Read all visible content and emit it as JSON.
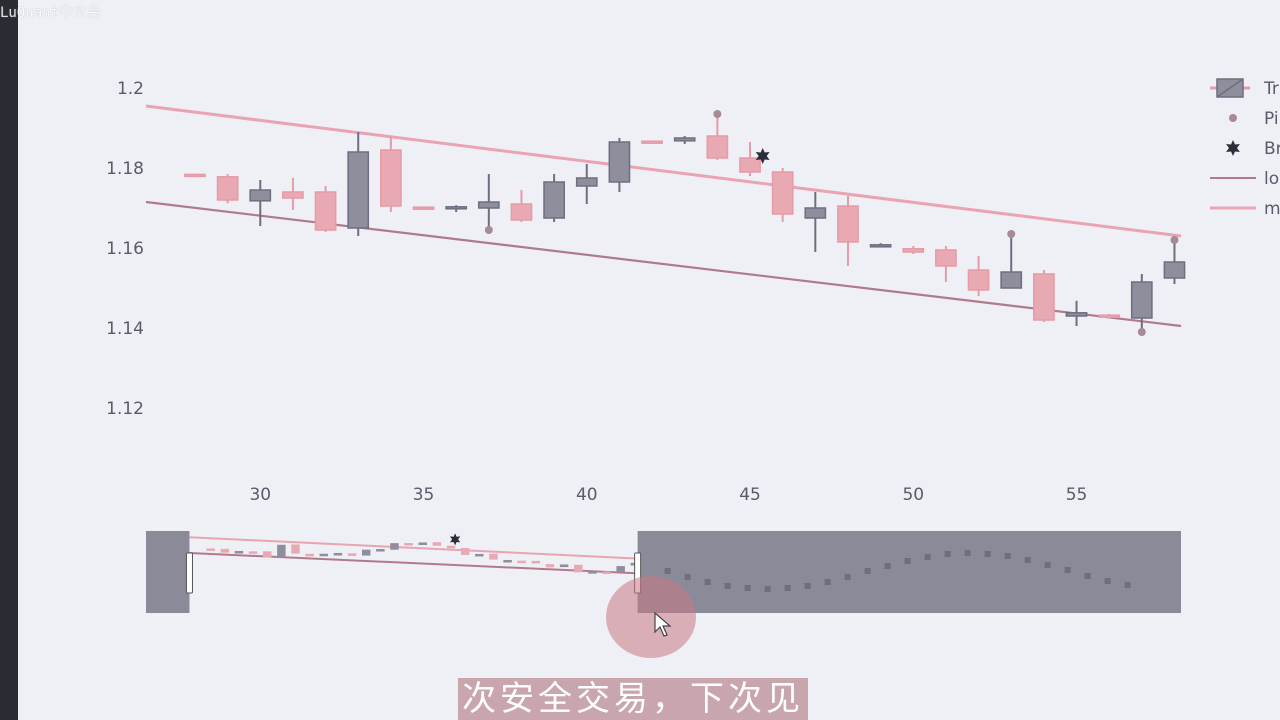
{
  "watermark": "LuQuant中文台",
  "subtitle": "次安全交易，下次见",
  "colors": {
    "background": "#eff0f5",
    "bull_fill": "#e8a9b3",
    "bull_line": "#e79aa7",
    "bear_fill": "#8e8e9c",
    "bear_line": "#6e6e80",
    "lower_trend": "#b07a8c",
    "upper_trend": "#eaa4b1",
    "pivot": "#a88a94",
    "breakout": "#2d2d3a",
    "range_shade": "#8b8a99"
  },
  "legend": [
    {
      "label": "Tr",
      "icon": "candlestick-icon"
    },
    {
      "label": "Pi",
      "icon": "dot-icon"
    },
    {
      "label": "Br",
      "icon": "star-icon"
    },
    {
      "label": "lo",
      "icon": "line-icon"
    },
    {
      "label": "m",
      "icon": "line-icon"
    }
  ],
  "chart_data": {
    "type": "candlestick",
    "xlim": [
      26.5,
      58.2
    ],
    "ylim": [
      1.107,
      1.2045
    ],
    "xticks": [
      30,
      35,
      40,
      45,
      50,
      55
    ],
    "yticks": [
      1.12,
      1.14,
      1.16,
      1.18,
      1.2
    ],
    "xtick_labels": [
      "30",
      "35",
      "40",
      "45",
      "50",
      "55"
    ],
    "ytick_labels": [
      "1.12",
      "1.14",
      "1.16",
      "1.18",
      "1.2"
    ],
    "grid": false,
    "legend_position": "top-right",
    "candles": [
      {
        "x": 28,
        "open": 1.1783,
        "high": 1.1785,
        "low": 1.1781,
        "close": 1.1784
      },
      {
        "x": 29,
        "open": 1.172,
        "high": 1.1785,
        "low": 1.1712,
        "close": 1.1778
      },
      {
        "x": 30,
        "open": 1.1745,
        "high": 1.177,
        "low": 1.1655,
        "close": 1.1718
      },
      {
        "x": 31,
        "open": 1.1725,
        "high": 1.1775,
        "low": 1.1695,
        "close": 1.174
      },
      {
        "x": 32,
        "open": 1.1645,
        "high": 1.1755,
        "low": 1.164,
        "close": 1.174
      },
      {
        "x": 33,
        "open": 1.184,
        "high": 1.189,
        "low": 1.163,
        "close": 1.165
      },
      {
        "x": 34,
        "open": 1.1705,
        "high": 1.188,
        "low": 1.169,
        "close": 1.1845
      },
      {
        "x": 35,
        "open": 1.17,
        "high": 1.1703,
        "low": 1.1697,
        "close": 1.1702
      },
      {
        "x": 36,
        "open": 1.1703,
        "high": 1.1707,
        "low": 1.169,
        "close": 1.1698
      },
      {
        "x": 37,
        "open": 1.1715,
        "high": 1.1785,
        "low": 1.1645,
        "close": 1.17
      },
      {
        "x": 38,
        "open": 1.167,
        "high": 1.1745,
        "low": 1.1665,
        "close": 1.171
      },
      {
        "x": 39,
        "open": 1.1765,
        "high": 1.1785,
        "low": 1.1665,
        "close": 1.1675
      },
      {
        "x": 40,
        "open": 1.1775,
        "high": 1.181,
        "low": 1.171,
        "close": 1.1755
      },
      {
        "x": 41,
        "open": 1.1865,
        "high": 1.1875,
        "low": 1.174,
        "close": 1.1765
      },
      {
        "x": 42,
        "open": 1.1865,
        "high": 1.1868,
        "low": 1.1862,
        "close": 1.1867
      },
      {
        "x": 43,
        "open": 1.1875,
        "high": 1.188,
        "low": 1.186,
        "close": 1.1868
      },
      {
        "x": 44,
        "open": 1.1825,
        "high": 1.1935,
        "low": 1.182,
        "close": 1.188
      },
      {
        "x": 45,
        "open": 1.179,
        "high": 1.1865,
        "low": 1.178,
        "close": 1.1825
      },
      {
        "x": 46,
        "open": 1.1685,
        "high": 1.18,
        "low": 1.1665,
        "close": 1.179
      },
      {
        "x": 47,
        "open": 1.17,
        "high": 1.174,
        "low": 1.159,
        "close": 1.1675
      },
      {
        "x": 48,
        "open": 1.1615,
        "high": 1.173,
        "low": 1.1555,
        "close": 1.1705
      },
      {
        "x": 49,
        "open": 1.1608,
        "high": 1.1612,
        "low": 1.1604,
        "close": 1.1607
      },
      {
        "x": 50,
        "open": 1.159,
        "high": 1.1605,
        "low": 1.1585,
        "close": 1.1598
      },
      {
        "x": 51,
        "open": 1.1555,
        "high": 1.1605,
        "low": 1.1515,
        "close": 1.1595
      },
      {
        "x": 52,
        "open": 1.1495,
        "high": 1.158,
        "low": 1.148,
        "close": 1.1545
      },
      {
        "x": 53,
        "open": 1.154,
        "high": 1.1635,
        "low": 1.15,
        "close": 1.15
      },
      {
        "x": 54,
        "open": 1.142,
        "high": 1.1545,
        "low": 1.1415,
        "close": 1.1535
      },
      {
        "x": 55,
        "open": 1.1438,
        "high": 1.1468,
        "low": 1.1405,
        "close": 1.143
      },
      {
        "x": 56,
        "open": 1.143,
        "high": 1.1435,
        "low": 1.1425,
        "close": 1.1432
      },
      {
        "x": 57,
        "open": 1.1515,
        "high": 1.1535,
        "low": 1.139,
        "close": 1.1425
      },
      {
        "x": 58,
        "open": 1.1565,
        "high": 1.162,
        "low": 1.151,
        "close": 1.1525
      }
    ],
    "pivots": [
      {
        "x": 44,
        "y": 1.1935
      },
      {
        "x": 57,
        "y": 1.139
      },
      {
        "x": 58,
        "y": 1.162
      },
      {
        "x": 53,
        "y": 1.1635
      },
      {
        "x": 37,
        "y": 1.1645
      }
    ],
    "breakouts": [
      {
        "x": 46,
        "y": 1.183
      }
    ],
    "upper_trendline": {
      "x": [
        26.5,
        58.2
      ],
      "y": [
        1.1955,
        1.163
      ]
    },
    "lower_trendline": {
      "x": [
        26.5,
        58.2
      ],
      "y": [
        1.1715,
        1.1405
      ]
    }
  },
  "range_slider": {
    "selected_start_frac": 0.042,
    "selected_end_frac": 0.475
  }
}
